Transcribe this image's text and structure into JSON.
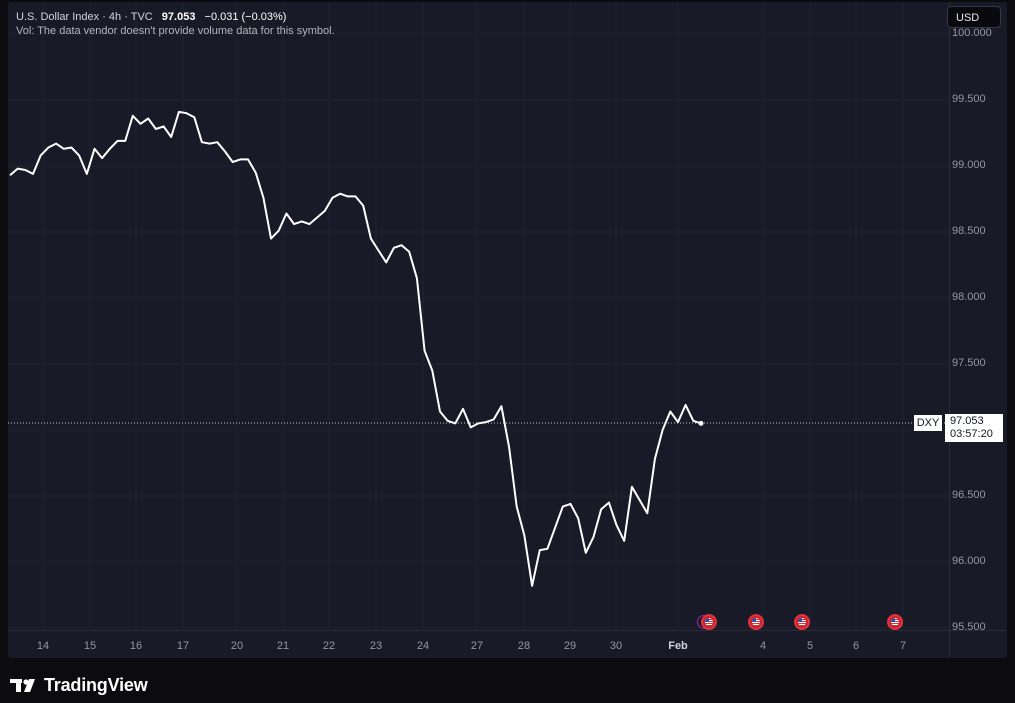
{
  "legend": {
    "title": "U.S. Dollar Index · 4h · TVC",
    "last": "97.053",
    "change": "−0.031 (−0.03%)",
    "volume_note": "Vol: The data vendor doesn't provide volume data for this symbol."
  },
  "currency_button": "USD",
  "price_tag": {
    "symbol": "DXY",
    "price": "97.053",
    "countdown": "03:57:20"
  },
  "brand": {
    "name": "TradingView",
    "logo_icon": "tradingview-logo-icon"
  },
  "events": {
    "icon": "us-flag-icon",
    "ring_icon": "dividend-ring-icon",
    "dates": [
      "Feb",
      "4",
      "5",
      "7"
    ]
  },
  "colors": {
    "background": "#191a27",
    "line": "#ffffff",
    "text": "#9598a1"
  },
  "chart_data": {
    "type": "line",
    "series": [
      {
        "values": [
          98.93,
          98.98,
          98.97,
          98.94,
          99.08,
          99.14,
          99.17,
          99.13,
          99.14,
          99.08,
          98.94,
          99.13,
          99.06,
          99.13,
          99.19,
          99.19,
          99.38,
          99.32,
          99.36,
          99.28,
          99.3,
          99.22,
          99.41,
          99.4,
          99.37,
          99.18,
          99.17,
          99.18,
          99.11,
          99.03,
          99.05,
          99.05,
          98.95,
          98.76,
          98.45,
          98.51,
          98.64,
          98.56,
          98.58,
          98.56,
          98.61,
          98.66,
          98.76,
          98.79,
          98.77,
          98.77,
          98.7,
          98.45,
          98.36,
          98.27,
          98.38,
          98.4,
          98.35,
          98.15,
          97.6,
          97.45,
          97.14,
          97.07,
          97.05,
          97.16,
          97.02,
          97.05,
          97.06,
          97.08,
          97.18,
          96.87,
          96.42,
          96.2,
          95.82,
          96.09,
          96.1,
          96.26,
          96.42,
          96.44,
          96.33,
          96.07,
          96.19,
          96.4,
          96.45,
          96.28,
          96.16,
          96.57,
          96.47,
          96.37,
          96.78,
          97.0,
          97.14,
          97.06,
          97.19,
          97.07,
          97.05
        ]
      }
    ],
    "x_labels": [
      "14",
      "15",
      "16",
      "17",
      "20",
      "21",
      "22",
      "23",
      "24",
      "27",
      "28",
      "29",
      "30",
      "Feb",
      "4",
      "5",
      "6",
      "7"
    ],
    "y_ticks": [
      95.5,
      96.0,
      96.5,
      97.0,
      97.5,
      98.0,
      98.5,
      99.0,
      99.5,
      100.0
    ],
    "y_tick_labels": [
      "95.500",
      "96.000",
      "96.500",
      "",
      "97.500",
      "98.000",
      "98.500",
      "99.000",
      "99.500",
      "100.000"
    ],
    "ylim": [
      95.5,
      100.0
    ],
    "last_value": 97.053,
    "grid": true
  }
}
